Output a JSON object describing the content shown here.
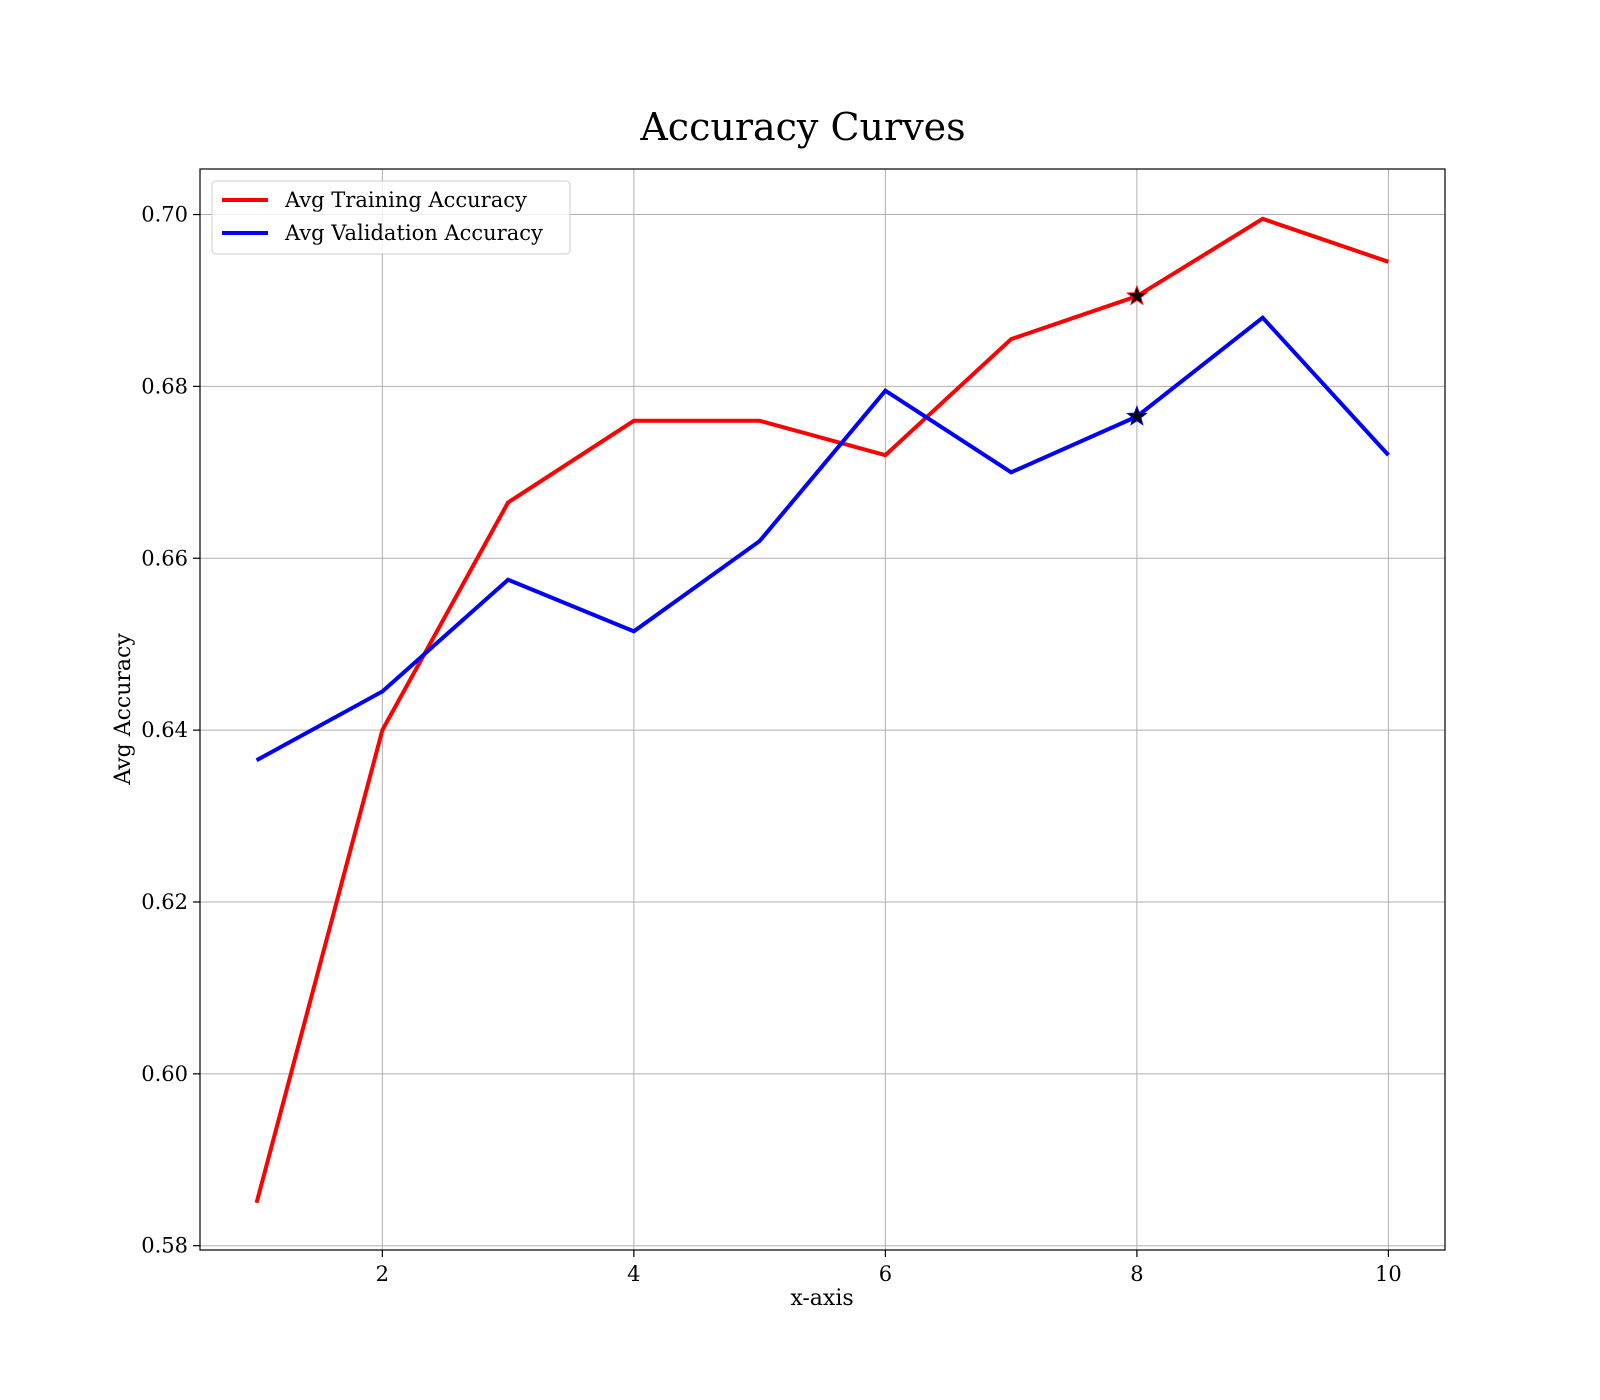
{
  "chart_data": {
    "type": "line",
    "title": "Accuracy Curves",
    "xlabel": "x-axis",
    "ylabel": "Avg Accuracy",
    "x": [
      1,
      2,
      3,
      4,
      5,
      6,
      7,
      8,
      9,
      10
    ],
    "xlim": [
      0.55,
      10.45
    ],
    "ylim": [
      0.5795,
      0.7053
    ],
    "xticks": [
      2,
      4,
      6,
      8,
      10
    ],
    "xtick_labels": [
      "2",
      "4",
      "6",
      "8",
      "10"
    ],
    "yticks": [
      0.58,
      0.6,
      0.62,
      0.64,
      0.66,
      0.68,
      0.7
    ],
    "ytick_labels": [
      "0.58",
      "0.60",
      "0.62",
      "0.64",
      "0.66",
      "0.68",
      "0.70"
    ],
    "grid": true,
    "legend_position": "upper-left",
    "series": [
      {
        "name": "Avg Training Accuracy",
        "color": "#ff0000",
        "values": [
          0.585,
          0.64,
          0.6665,
          0.676,
          0.676,
          0.672,
          0.6855,
          0.6905,
          0.6995,
          0.6945
        ]
      },
      {
        "name": "Avg Validation Accuracy",
        "color": "#0000ff",
        "values": [
          0.6365,
          0.6445,
          0.6575,
          0.6515,
          0.662,
          0.6795,
          0.67,
          0.6765,
          0.688,
          0.672
        ]
      }
    ],
    "markers": [
      {
        "series": 0,
        "x": 8,
        "y": 0.6905,
        "shape": "star"
      },
      {
        "series": 1,
        "x": 8,
        "y": 0.6765,
        "shape": "star"
      }
    ]
  }
}
